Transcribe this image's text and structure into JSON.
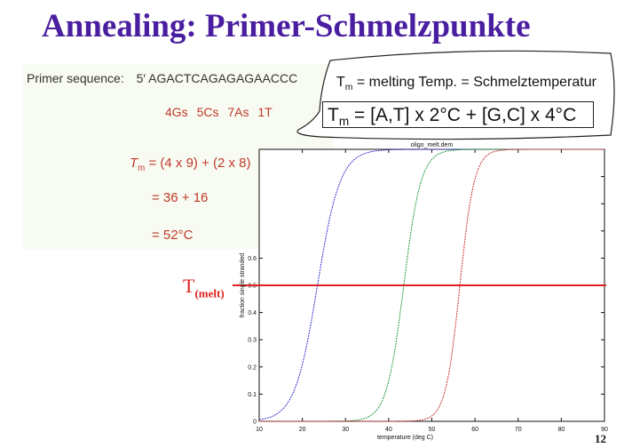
{
  "title": "Annealing: Primer-Schmelzpunkte",
  "calculation": {
    "sequence_label": "Primer sequence:",
    "sequence_prime": "5′",
    "sequence": "AGACTCAGAGAGAACCC",
    "counts": "4Gs 5Cs 7As 1T",
    "tm_symbol": "T",
    "tm_sub": "m",
    "tm_formula": "= (4 x 9)  + (2 x 8)",
    "step2": "= 36 + 16",
    "step3": "= 52°C"
  },
  "definition": {
    "symbol": "T",
    "sub": "m",
    "text": "= melting Temp. = Schmelztemperatur",
    "formula": "= [A,T] x 2°C  +  [G,C] x 4°C"
  },
  "annotation": {
    "symbol": "T",
    "sub": "(melt)"
  },
  "page_number": "12",
  "colors": {
    "title": "#4a1ea0",
    "formula_red": "#c0392b",
    "melt_line": "#e02020",
    "curve1": "#3333cc",
    "curve2": "#1f9a3a",
    "curve3": "#cc3333"
  },
  "chart_data": {
    "type": "line",
    "title": "oligo_melt.dem",
    "xlabel": "temperature (deg C)",
    "ylabel": "fraction single stranded",
    "xlim": [
      10,
      90
    ],
    "x_ticks": [
      "10",
      "20",
      "30",
      "40",
      "50",
      "60",
      "70",
      "80",
      "90"
    ],
    "y_ticks": [
      "0",
      "0.1",
      "0.2",
      "0.3",
      "0.4",
      "0.5",
      "0.6"
    ],
    "ylim": [
      0,
      1
    ],
    "threshold": 0.5,
    "series": [
      {
        "color": "#3333cc",
        "midpoint": 23.5,
        "steepness": 0.38
      },
      {
        "color": "#1f9a3a",
        "midpoint": 43.5,
        "steepness": 0.5
      },
      {
        "color": "#cc3333",
        "midpoint": 56.5,
        "steepness": 0.6
      }
    ]
  }
}
